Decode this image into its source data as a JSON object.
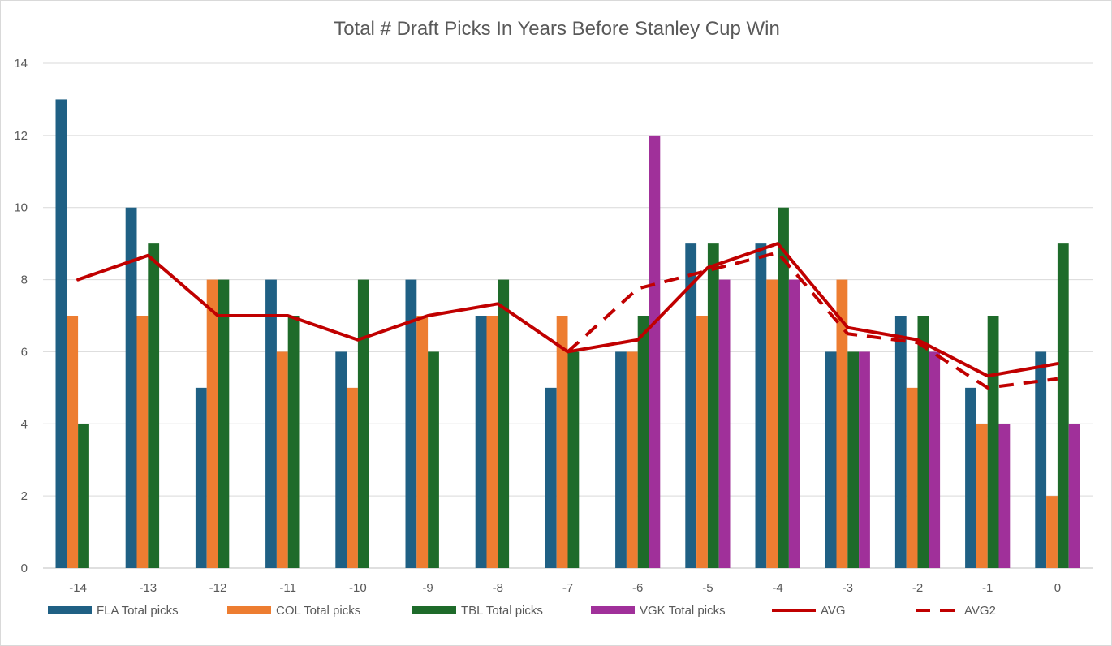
{
  "chart_data": {
    "type": "bar",
    "title": "Total # Draft Picks In Years Before Stanley Cup Win",
    "xlabel": "",
    "ylabel": "",
    "categories": [
      "-14",
      "-13",
      "-12",
      "-11",
      "-10",
      "-9",
      "-8",
      "-7",
      "-6",
      "-5",
      "-4",
      "-3",
      "-2",
      "-1",
      "0"
    ],
    "ylim": [
      0,
      14
    ],
    "yticks": [
      0,
      2,
      4,
      6,
      8,
      10,
      12,
      14
    ],
    "grid": true,
    "legend_position": "bottom",
    "series": [
      {
        "name": "FLA Total picks",
        "kind": "bar",
        "color": "#1f6084",
        "values": [
          13,
          10,
          5,
          8,
          6,
          8,
          7,
          5,
          6,
          9,
          9,
          6,
          7,
          5,
          6
        ]
      },
      {
        "name": "COL Total picks",
        "kind": "bar",
        "color": "#ed7d31",
        "values": [
          7,
          7,
          8,
          6,
          5,
          7,
          7,
          7,
          6,
          7,
          8,
          8,
          5,
          4,
          2
        ]
      },
      {
        "name": "TBL Total picks",
        "kind": "bar",
        "color": "#1e6b2a",
        "values": [
          4,
          9,
          8,
          7,
          8,
          6,
          8,
          6,
          7,
          9,
          10,
          6,
          7,
          7,
          9
        ]
      },
      {
        "name": "VGK Total picks",
        "kind": "bar",
        "color": "#a0309a",
        "values": [
          null,
          null,
          null,
          null,
          null,
          null,
          null,
          null,
          12,
          8,
          8,
          6,
          6,
          4,
          4
        ]
      },
      {
        "name": "AVG",
        "kind": "line",
        "dash": "solid",
        "color": "#c00000",
        "values": [
          8,
          8.67,
          7,
          7,
          6.33,
          7,
          7.33,
          6,
          6.33,
          8.33,
          9,
          6.67,
          6.33,
          5.33,
          5.67
        ]
      },
      {
        "name": "AVG2",
        "kind": "line",
        "dash": "dashed",
        "color": "#c00000",
        "values": [
          null,
          null,
          null,
          null,
          null,
          null,
          null,
          6,
          7.75,
          8.25,
          8.75,
          6.5,
          6.25,
          5,
          5.25
        ]
      }
    ]
  }
}
